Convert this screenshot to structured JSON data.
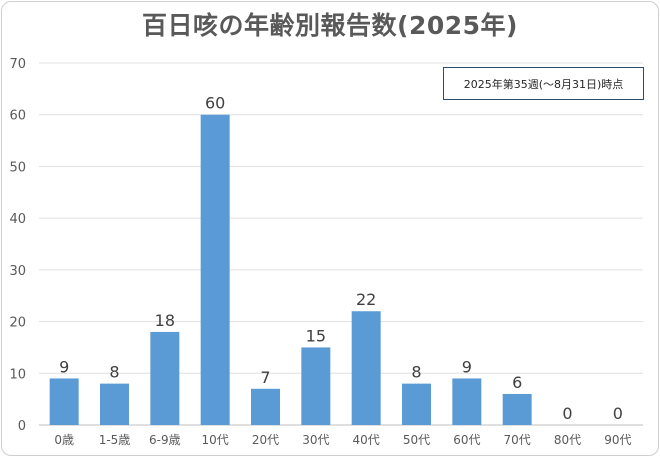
{
  "chart_data": {
    "type": "bar",
    "title": "百日咳の年齢別報告数(2025年)",
    "note": "2025年第35週(～8月31日)時点",
    "categories": [
      "0歳",
      "1-5歳",
      "6-9歳",
      "10代",
      "20代",
      "30代",
      "40代",
      "50代",
      "60代",
      "70代",
      "80代",
      "90代"
    ],
    "values": [
      9,
      8,
      18,
      60,
      7,
      15,
      22,
      8,
      9,
      6,
      0,
      0
    ],
    "ylim": [
      0,
      70
    ],
    "yticks": [
      "0",
      "10",
      "20",
      "30",
      "40",
      "50",
      "60",
      "70"
    ],
    "grid": true,
    "legend": "none",
    "bar_color": "#5b9bd5"
  }
}
